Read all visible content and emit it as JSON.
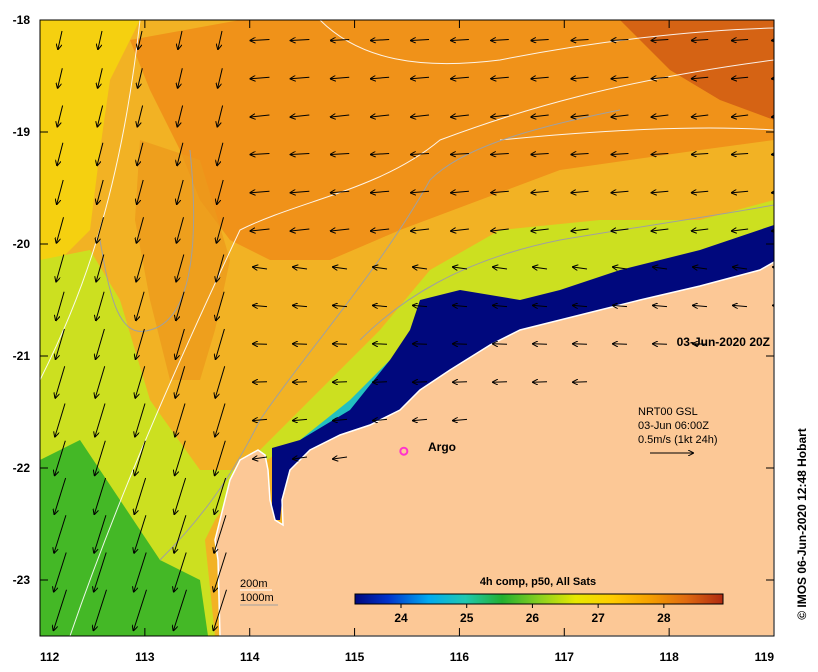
{
  "map": {
    "date_label": "03-Jun-2020 20Z",
    "credit": "© IMOS 06-Jun-2020 12:48 Hobart",
    "lon_ticks": [
      "112",
      "113",
      "114",
      "115",
      "116",
      "117",
      "118",
      "119"
    ],
    "lat_ticks": [
      "-18",
      "-19",
      "-20",
      "-21",
      "-22",
      "-23"
    ],
    "lon_range": [
      112,
      119
    ],
    "lat_range": [
      -23.5,
      -18
    ],
    "current_legend": {
      "line1": "NRT00 GSL",
      "line2": "03-Jun 06:00Z",
      "line3": "0.5m/s (1kt 24h)"
    },
    "argo_label": "Argo",
    "argo_position": {
      "lon": 115.47,
      "lat": -21.85
    },
    "isobath_labels": {
      "shallow": "200m",
      "deep": "1000m"
    },
    "colorbar": {
      "title": "4h comp, p50, All Sats",
      "ticks": [
        "24",
        "25",
        "26",
        "27",
        "28"
      ],
      "range": [
        23.3,
        28.9
      ]
    },
    "colors": {
      "land": "#fcc896",
      "cold": "#00087d",
      "warm": "#d84a14",
      "argo": "#ff33cc"
    }
  }
}
